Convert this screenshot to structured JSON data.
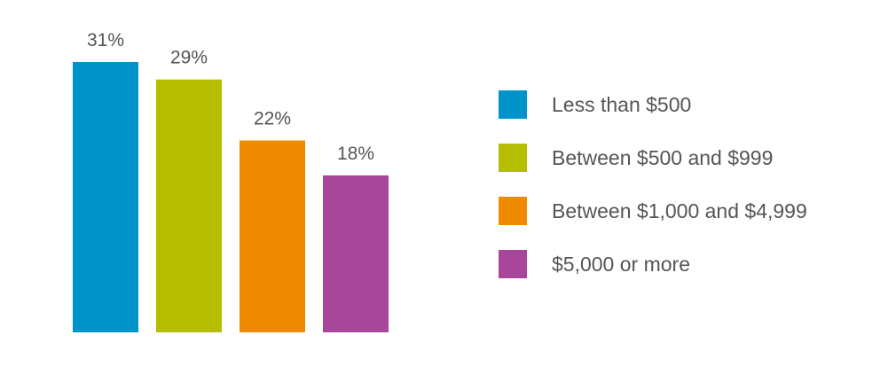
{
  "chart_data": {
    "type": "bar",
    "categories": [
      "Less than $500",
      "Between $500 and $999",
      "Between $1,000 and $4,999",
      "$5,000 or more"
    ],
    "values": [
      31,
      29,
      22,
      18
    ],
    "value_labels": [
      "31%",
      "29%",
      "22%",
      "18%"
    ],
    "colors": [
      "#0093c9",
      "#b5bf00",
      "#ef8b00",
      "#a8469a"
    ],
    "unit": "%",
    "ylim": [
      0,
      31
    ],
    "grid": false,
    "legend_placement": "right"
  }
}
